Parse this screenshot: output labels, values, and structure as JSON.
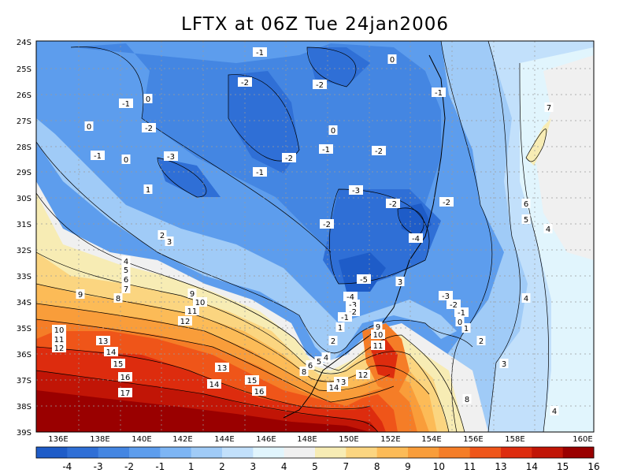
{
  "title": "LFTX at 06Z Tue 24jan2006",
  "x_tick_labels": [
    "136E",
    "138E",
    "140E",
    "142E",
    "144E",
    "146E",
    "148E",
    "150E",
    "152E",
    "154E",
    "156E",
    "158E",
    "160E"
  ],
  "y_tick_labels": [
    "24S",
    "25S",
    "26S",
    "27S",
    "28S",
    "29S",
    "30S",
    "31S",
    "32S",
    "33S",
    "34S",
    "35S",
    "36S",
    "37S",
    "38S",
    "39S"
  ],
  "colorbar": {
    "labels": [
      "-4",
      "-3",
      "-2",
      "-1",
      "1",
      "2",
      "3",
      "4",
      "5",
      "7",
      "8",
      "9",
      "10",
      "11",
      "13",
      "14",
      "15",
      "16"
    ],
    "colors": [
      "#1e5cc8",
      "#2f6fd6",
      "#4486e2",
      "#5d9ded",
      "#7db5f4",
      "#a0cbf7",
      "#c2e0fb",
      "#e1f5fd",
      "#f0f0f0",
      "#f7ecb4",
      "#fbd580",
      "#fcbb57",
      "#f99d3a",
      "#f57d27",
      "#ef5519",
      "#dd2c0e",
      "#c11506",
      "#9a0000"
    ]
  },
  "contour_labels": [
    {
      "text": "-1"
    },
    {
      "text": "0"
    },
    {
      "text": "-2"
    },
    {
      "text": "-2"
    },
    {
      "text": "-1"
    },
    {
      "text": "0"
    },
    {
      "text": "-1"
    },
    {
      "text": "0"
    },
    {
      "text": "-2"
    },
    {
      "text": "0"
    },
    {
      "text": "-1"
    },
    {
      "text": "-3"
    },
    {
      "text": "-1"
    },
    {
      "text": "0"
    },
    {
      "text": "-2"
    },
    {
      "text": "-2"
    },
    {
      "text": "-1"
    },
    {
      "text": "-3"
    },
    {
      "text": "-2"
    },
    {
      "text": "-2"
    },
    {
      "text": "1"
    },
    {
      "text": "2"
    },
    {
      "text": "3"
    },
    {
      "text": "-2"
    },
    {
      "text": "-4"
    },
    {
      "text": "4"
    },
    {
      "text": "5"
    },
    {
      "text": "6"
    },
    {
      "text": "7"
    },
    {
      "text": "-5"
    },
    {
      "text": "3"
    },
    {
      "text": "9"
    },
    {
      "text": "8"
    },
    {
      "text": "9"
    },
    {
      "text": "10"
    },
    {
      "text": "11"
    },
    {
      "text": "12"
    },
    {
      "text": "-3"
    },
    {
      "text": "-2"
    },
    {
      "text": "-1"
    },
    {
      "text": "0"
    },
    {
      "text": "1"
    },
    {
      "text": "-4"
    },
    {
      "text": "-3"
    },
    {
      "text": "-2"
    },
    {
      "text": "-1"
    },
    {
      "text": "1"
    },
    {
      "text": "10"
    },
    {
      "text": "11"
    },
    {
      "text": "12"
    },
    {
      "text": "13"
    },
    {
      "text": "14"
    },
    {
      "text": "15"
    },
    {
      "text": "16"
    },
    {
      "text": "17"
    },
    {
      "text": "13"
    },
    {
      "text": "14"
    },
    {
      "text": "15"
    },
    {
      "text": "16"
    },
    {
      "text": "2"
    },
    {
      "text": "8"
    },
    {
      "text": "6"
    },
    {
      "text": "5"
    },
    {
      "text": "4"
    },
    {
      "text": "9"
    },
    {
      "text": "10"
    },
    {
      "text": "11"
    },
    {
      "text": "12"
    },
    {
      "text": "13"
    },
    {
      "text": "14"
    },
    {
      "text": "2"
    },
    {
      "text": "3"
    },
    {
      "text": "8"
    },
    {
      "text": "4"
    },
    {
      "text": "4"
    },
    {
      "text": "7"
    },
    {
      "text": "6"
    },
    {
      "text": "5"
    },
    {
      "text": "4"
    }
  ]
}
